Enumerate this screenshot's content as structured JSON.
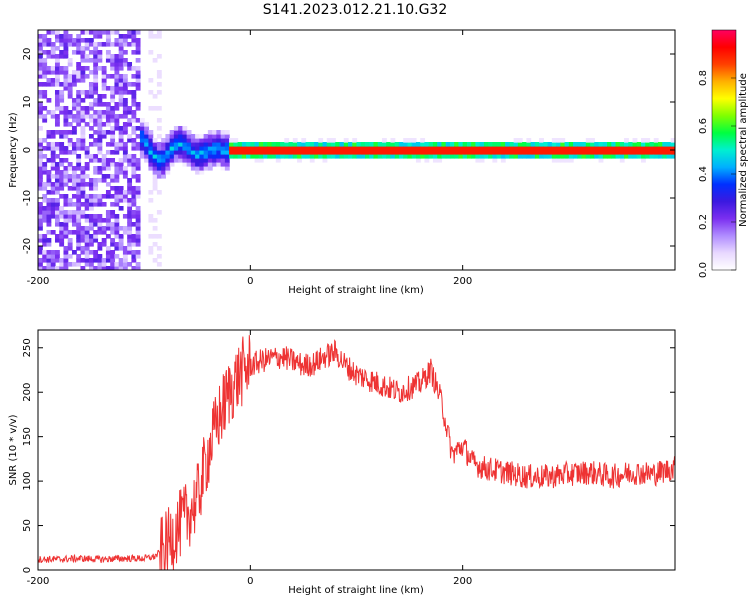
{
  "figure": {
    "title": "S141.2023.012.21.10.G32"
  },
  "chart_data": [
    {
      "type": "heatmap",
      "xlabel": "Height of straight line (km)",
      "ylabel": "Frequency (Hz)",
      "xlim": [
        -200,
        400
      ],
      "ylim": [
        -25,
        25
      ],
      "xticks": [
        -200,
        0,
        200
      ],
      "yticks": [
        -20,
        -10,
        0,
        10,
        20
      ],
      "colorbar": {
        "label": "Normalized spectral amplitude",
        "range": [
          0,
          1
        ],
        "ticks": [
          0.0,
          0.2,
          0.4,
          0.6,
          0.8
        ],
        "colormap": [
          "#ffffff",
          "#e8d8ff",
          "#b08cff",
          "#7b2ff0",
          "#3b19e0",
          "#0030ff",
          "#00b0ff",
          "#00f0d0",
          "#00ff40",
          "#80ff00",
          "#ffff00",
          "#ffb000",
          "#ff4000",
          "#ff0000",
          "#ff0060"
        ]
      },
      "regions": [
        {
          "x": [
            -200,
            -105
          ],
          "description_level": 0.15
        },
        {
          "x": [
            -105,
            -20
          ],
          "center_hz": 0,
          "spread_hz": 4,
          "level": 0.4
        },
        {
          "x": [
            -20,
            400
          ],
          "center_hz": 0,
          "spread_hz": 1,
          "level": 0.9
        }
      ]
    },
    {
      "type": "line",
      "xlabel": "Height of straight line (km)",
      "ylabel": "SNR (10 * v/v)",
      "xlim": [
        -200,
        400
      ],
      "ylim": [
        0,
        270
      ],
      "xticks": [
        -200,
        0,
        200
      ],
      "yticks": [
        0,
        50,
        100,
        150,
        200,
        250
      ],
      "color": "#ee3333",
      "series": [
        {
          "x": [
            -200,
            -180,
            -160,
            -140,
            -120,
            -100,
            -90,
            -80,
            -70,
            -60,
            -50,
            -40,
            -30,
            -20,
            -10,
            0,
            10,
            20,
            30,
            40,
            50,
            60,
            70,
            80,
            90,
            100,
            110,
            120,
            130,
            140,
            150,
            160,
            170,
            180,
            190,
            200,
            210,
            220,
            240,
            260,
            280,
            300,
            320,
            340,
            360,
            380,
            400
          ],
          "values": [
            12,
            12,
            13,
            12,
            13,
            13,
            15,
            25,
            45,
            60,
            80,
            130,
            170,
            200,
            220,
            230,
            235,
            238,
            240,
            235,
            230,
            232,
            240,
            245,
            230,
            220,
            215,
            210,
            205,
            200,
            205,
            210,
            225,
            190,
            130,
            140,
            120,
            115,
            110,
            105,
            105,
            108,
            110,
            105,
            110,
            108,
            115
          ]
        }
      ]
    }
  ]
}
